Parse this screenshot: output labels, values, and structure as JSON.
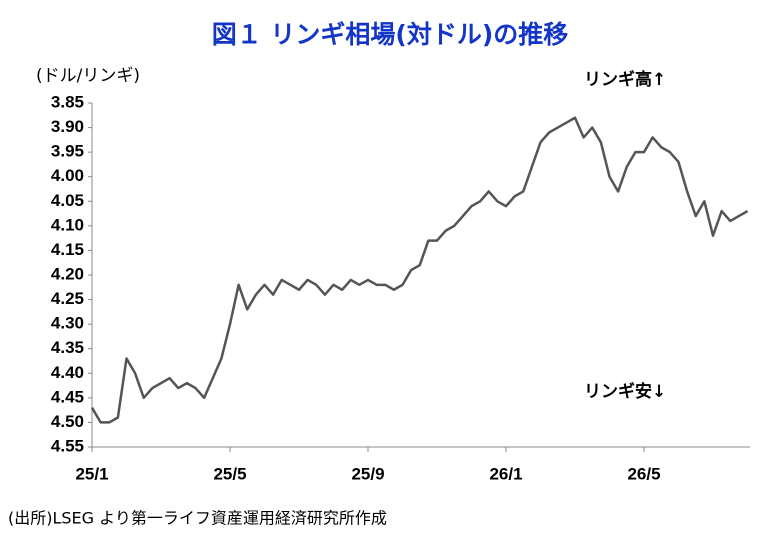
{
  "chart_data": {
    "type": "line",
    "title": "図１ リンギ相場(対ドル)の推移",
    "y_label": "(ドル/リンギ)",
    "annotations": [
      "リンギ高↑",
      "リンギ安↓"
    ],
    "source": "(出所)LSEG より第一ライフ資産運用経済研究所作成",
    "color": "#555555",
    "categories": [
      "25/1",
      null,
      null,
      null,
      null,
      null,
      null,
      null,
      null,
      null,
      null,
      null,
      null,
      null,
      null,
      null,
      "25/5",
      null,
      null,
      null,
      null,
      null,
      null,
      null,
      null,
      null,
      null,
      null,
      null,
      null,
      null,
      null,
      "25/9",
      null,
      null,
      null,
      null,
      null,
      null,
      null,
      null,
      null,
      null,
      null,
      null,
      null,
      null,
      null,
      "26/1",
      null,
      null,
      null,
      null,
      null,
      null,
      null,
      null,
      null,
      null,
      null,
      null,
      null,
      null,
      null,
      "26/5",
      null,
      null,
      null,
      null,
      null,
      null,
      null,
      null,
      null,
      null,
      null,
      null
    ],
    "values": [
      4.47,
      4.5,
      4.5,
      4.49,
      4.37,
      4.4,
      4.45,
      4.43,
      4.42,
      4.41,
      4.43,
      4.42,
      4.43,
      4.45,
      4.41,
      4.37,
      4.3,
      4.22,
      4.27,
      4.24,
      4.22,
      4.24,
      4.21,
      4.22,
      4.23,
      4.21,
      4.22,
      4.24,
      4.22,
      4.23,
      4.21,
      4.22,
      4.21,
      4.22,
      4.22,
      4.23,
      4.22,
      4.19,
      4.18,
      4.13,
      4.13,
      4.11,
      4.1,
      4.08,
      4.06,
      4.05,
      4.03,
      4.05,
      4.06,
      4.04,
      4.03,
      3.98,
      3.93,
      3.91,
      3.9,
      3.89,
      3.88,
      3.92,
      3.9,
      3.93,
      4.0,
      4.03,
      3.98,
      3.95,
      3.95,
      3.92,
      3.94,
      3.95,
      3.97,
      4.03,
      4.08,
      4.05,
      4.12,
      4.07,
      4.09,
      4.08,
      4.07
    ],
    "ylim": [
      4.55,
      3.85
    ],
    "yticks": [
      {
        "value": 3.85,
        "label": "3.85"
      },
      {
        "value": 3.9,
        "label": "3.90"
      },
      {
        "value": 3.95,
        "label": "3.95"
      },
      {
        "value": 4,
        "label": "4.00"
      },
      {
        "value": 4.05,
        "label": "4.05"
      },
      {
        "value": 4.1,
        "label": "4.10"
      },
      {
        "value": 4.15,
        "label": "4.15"
      },
      {
        "value": 4.2,
        "label": "4.20"
      },
      {
        "value": 4.25,
        "label": "4.25"
      },
      {
        "value": 4.3,
        "label": "4.30"
      },
      {
        "value": 4.35,
        "label": "4.35"
      },
      {
        "value": 4.4,
        "label": "4.40"
      },
      {
        "value": 4.45,
        "label": "4.45"
      },
      {
        "value": 4.5,
        "label": "4.50"
      },
      {
        "value": 4.55,
        "label": "4.55"
      }
    ],
    "grid": false
  }
}
